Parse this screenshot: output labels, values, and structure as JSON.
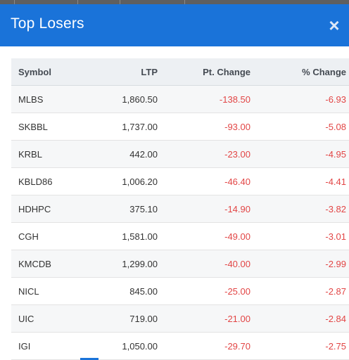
{
  "modal": {
    "title": "Top Losers",
    "close_symbol": "×",
    "close_icon": "close-icon"
  },
  "table": {
    "headers": {
      "symbol": "Symbol",
      "ltp": "LTP",
      "pt_change": "Pt. Change",
      "pct_change": "% Change"
    },
    "rows": [
      {
        "symbol": "MLBS",
        "ltp": "1,860.50",
        "pt_change": "-138.50",
        "pct_change": "-6.93"
      },
      {
        "symbol": "SKBBL",
        "ltp": "1,737.00",
        "pt_change": "-93.00",
        "pct_change": "-5.08"
      },
      {
        "symbol": "KRBL",
        "ltp": "442.00",
        "pt_change": "-23.00",
        "pct_change": "-4.95"
      },
      {
        "symbol": "KBLD86",
        "ltp": "1,006.20",
        "pt_change": "-46.40",
        "pct_change": "-4.41"
      },
      {
        "symbol": "HDHPC",
        "ltp": "375.10",
        "pt_change": "-14.90",
        "pct_change": "-3.82"
      },
      {
        "symbol": "CGH",
        "ltp": "1,581.00",
        "pt_change": "-49.00",
        "pct_change": "-3.01"
      },
      {
        "symbol": "KMCDB",
        "ltp": "1,299.00",
        "pt_change": "-40.00",
        "pct_change": "-2.99"
      },
      {
        "symbol": "NICL",
        "ltp": "845.00",
        "pt_change": "-25.00",
        "pct_change": "-2.87"
      },
      {
        "symbol": "UIC",
        "ltp": "719.00",
        "pt_change": "-21.00",
        "pct_change": "-2.84"
      },
      {
        "symbol": "IGI",
        "ltp": "1,050.00",
        "pt_change": "-29.70",
        "pct_change": "-2.75"
      }
    ]
  },
  "colors": {
    "header_blue": "#1a73d9",
    "negative_red": "#e24545"
  }
}
